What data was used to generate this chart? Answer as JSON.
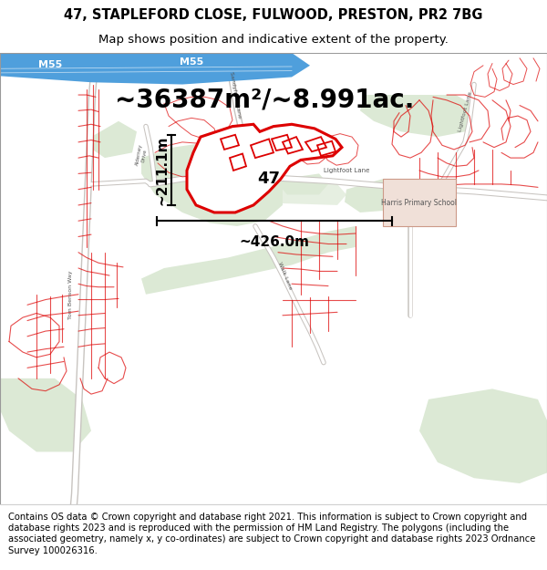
{
  "title_line1": "47, STAPLEFORD CLOSE, FULWOOD, PRESTON, PR2 7BG",
  "title_line2": "Map shows position and indicative extent of the property.",
  "area_text": "~36387m²/~8.991ac.",
  "label_47": "47",
  "dim_vertical": "~211.1m",
  "dim_horizontal": "~426.0m",
  "footer_text": "Contains OS data © Crown copyright and database right 2021. This information is subject to Crown copyright and database rights 2023 and is reproduced with the permission of HM Land Registry. The polygons (including the associated geometry, namely x, y co-ordinates) are subject to Crown copyright and database rights 2023 Ordnance Survey 100026316.",
  "title_fontsize": 10.5,
  "subtitle_fontsize": 9.5,
  "area_fontsize": 20,
  "label_fontsize": 13,
  "dim_fontsize": 11,
  "footer_fontsize": 7.2,
  "red": "#dd0000",
  "road_blue": "#4f9fdc",
  "map_white": "#ffffff",
  "map_bg": "#f8f8f5",
  "green_light": "#dce9d5",
  "green_mid": "#ccdfc5",
  "road_grey": "#e0dcd8",
  "road_outline": "#c8c4c0",
  "text_grey": "#888888",
  "text_dark": "#555555"
}
